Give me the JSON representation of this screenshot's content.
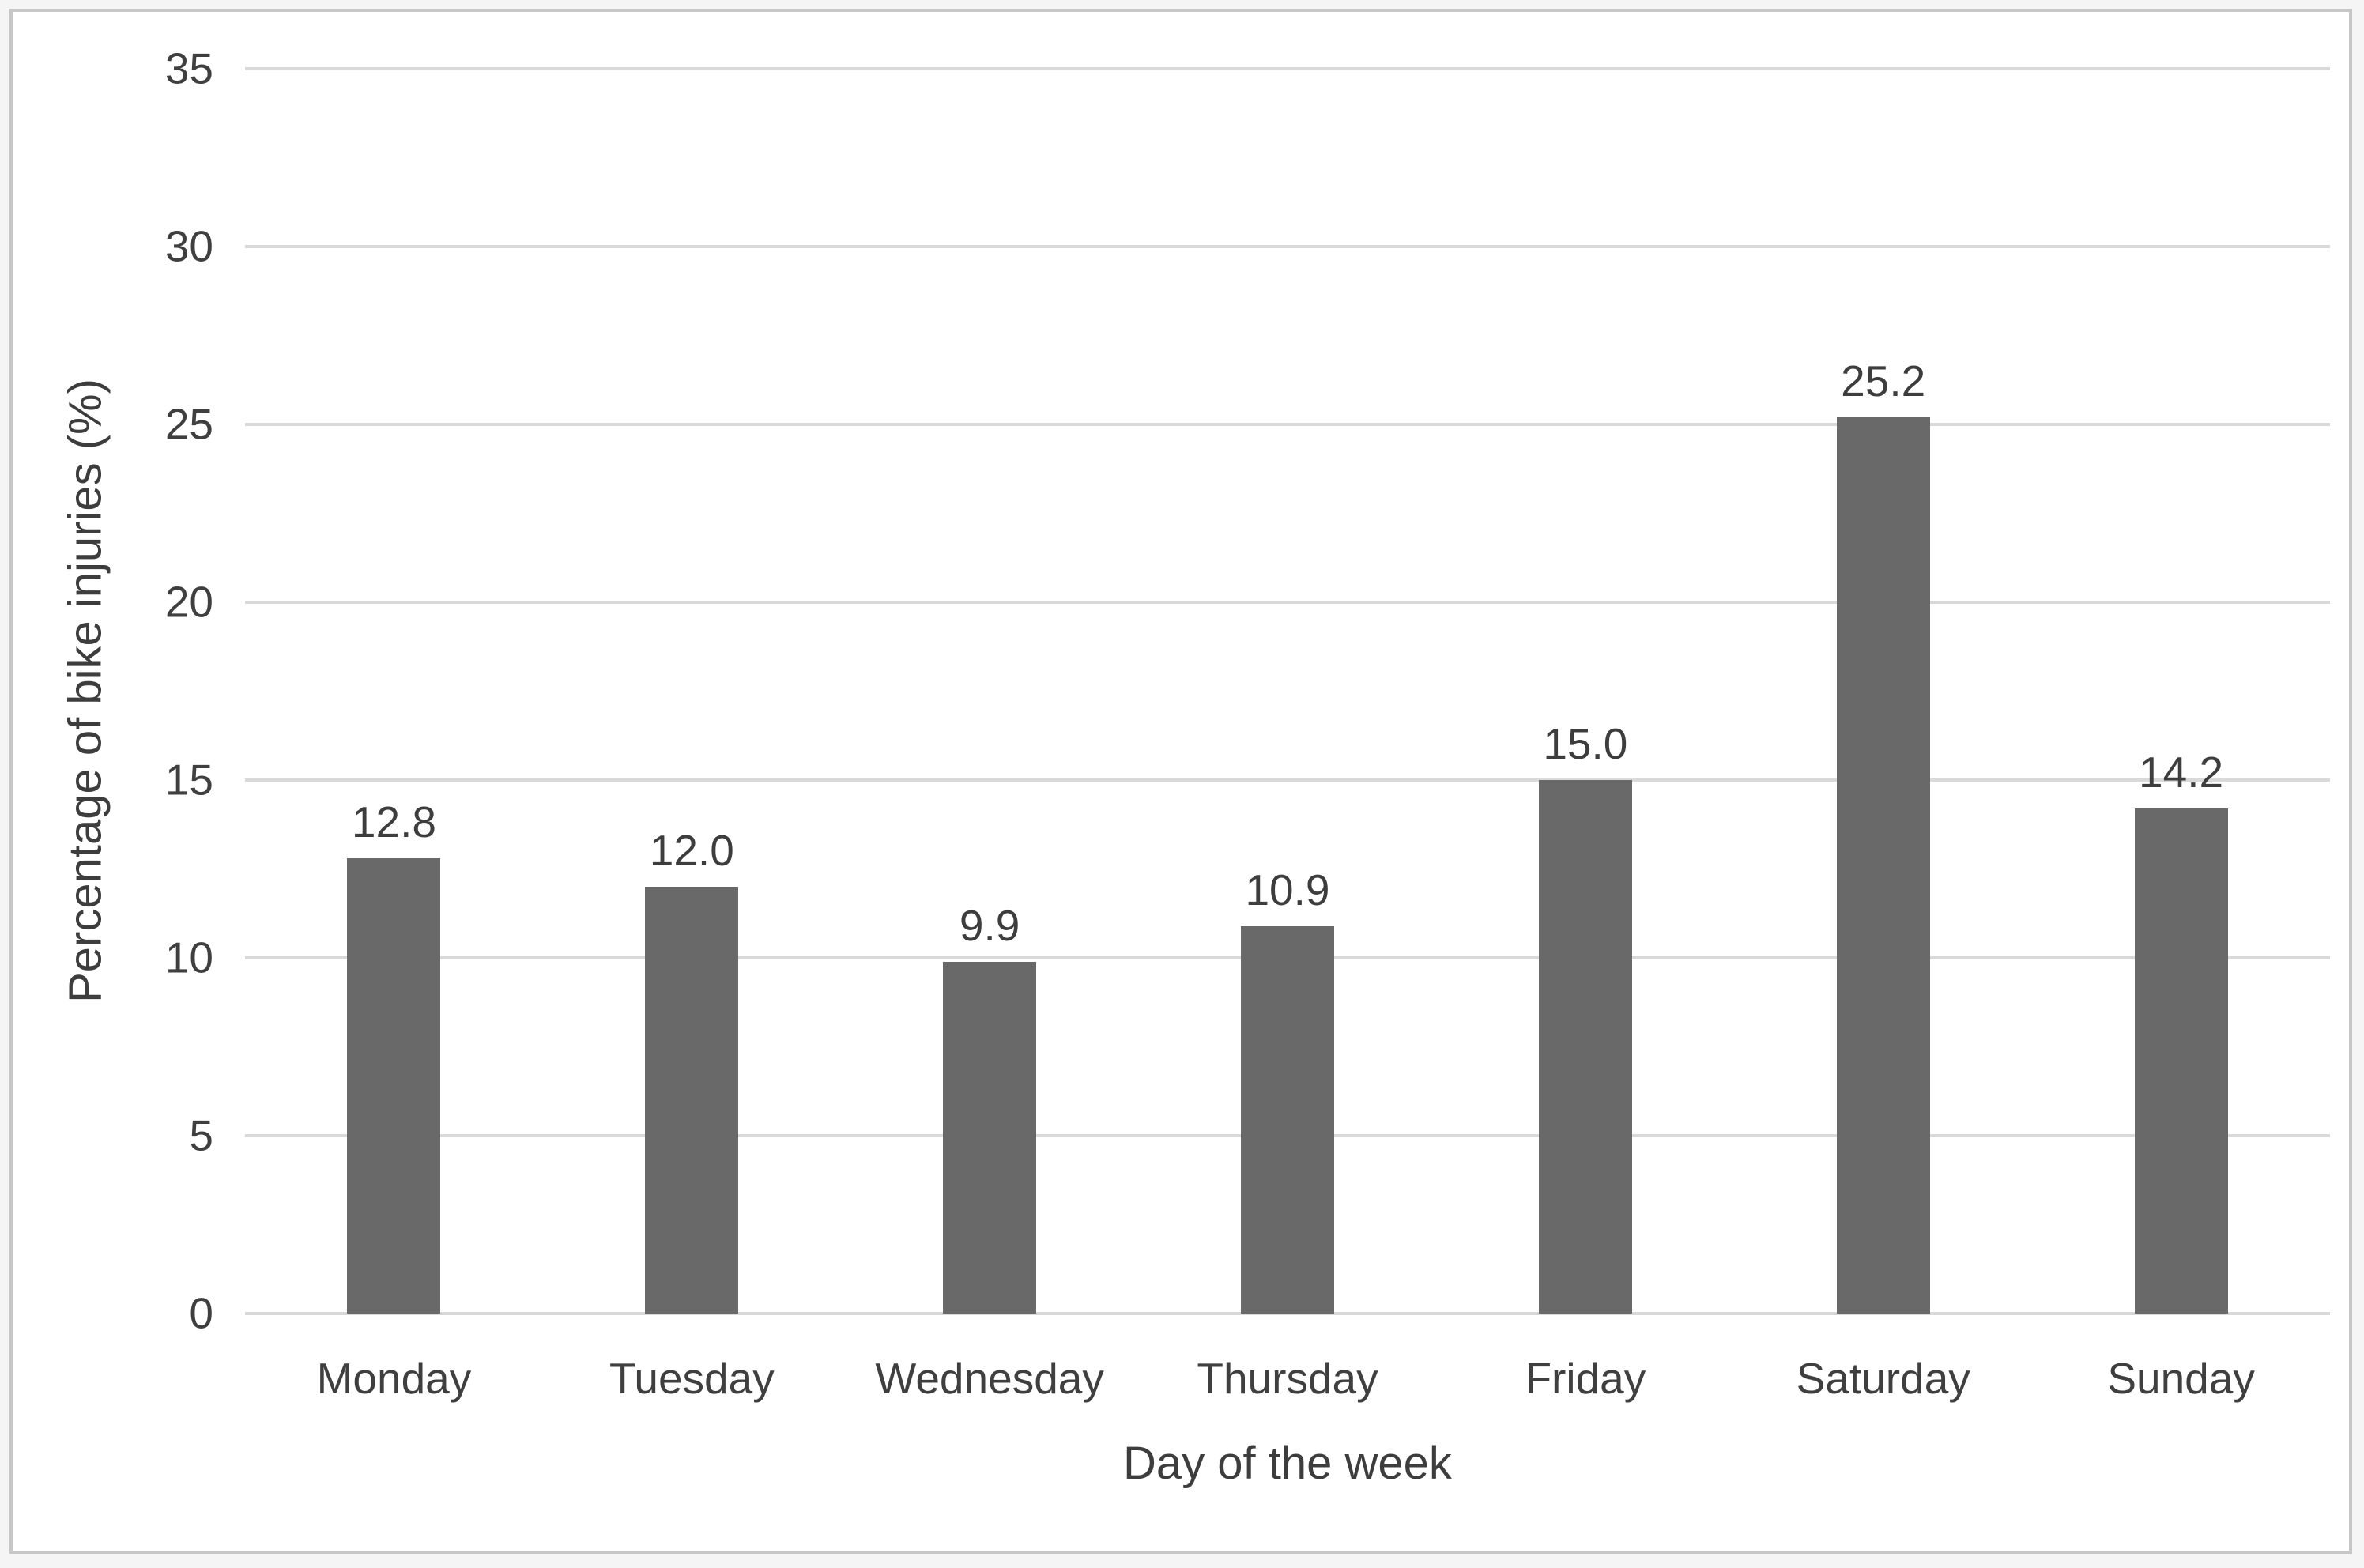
{
  "chart_data": {
    "type": "bar",
    "categories": [
      "Monday",
      "Tuesday",
      "Wednesday",
      "Thursday",
      "Friday",
      "Saturday",
      "Sunday"
    ],
    "values": [
      12.8,
      12.0,
      9.9,
      10.9,
      15.0,
      25.2,
      14.2
    ],
    "value_labels": [
      "12.8",
      "12.0",
      "9.9",
      "10.9",
      "15.0",
      "25.2",
      "14.2"
    ],
    "title": "",
    "xlabel": "Day of the week",
    "ylabel": "Percentage of bike injuries (%)",
    "ylim": [
      0,
      35
    ],
    "ytick_step": 5,
    "yticks": [
      "0",
      "5",
      "10",
      "15",
      "20",
      "25",
      "30",
      "35"
    ],
    "grid": "horizontal",
    "legend": "none",
    "bar_color": "#696969",
    "gridline_color": "#d9d9d9",
    "text_color": "#3f3f3f",
    "frame_border_color": "#c7c7c7"
  }
}
